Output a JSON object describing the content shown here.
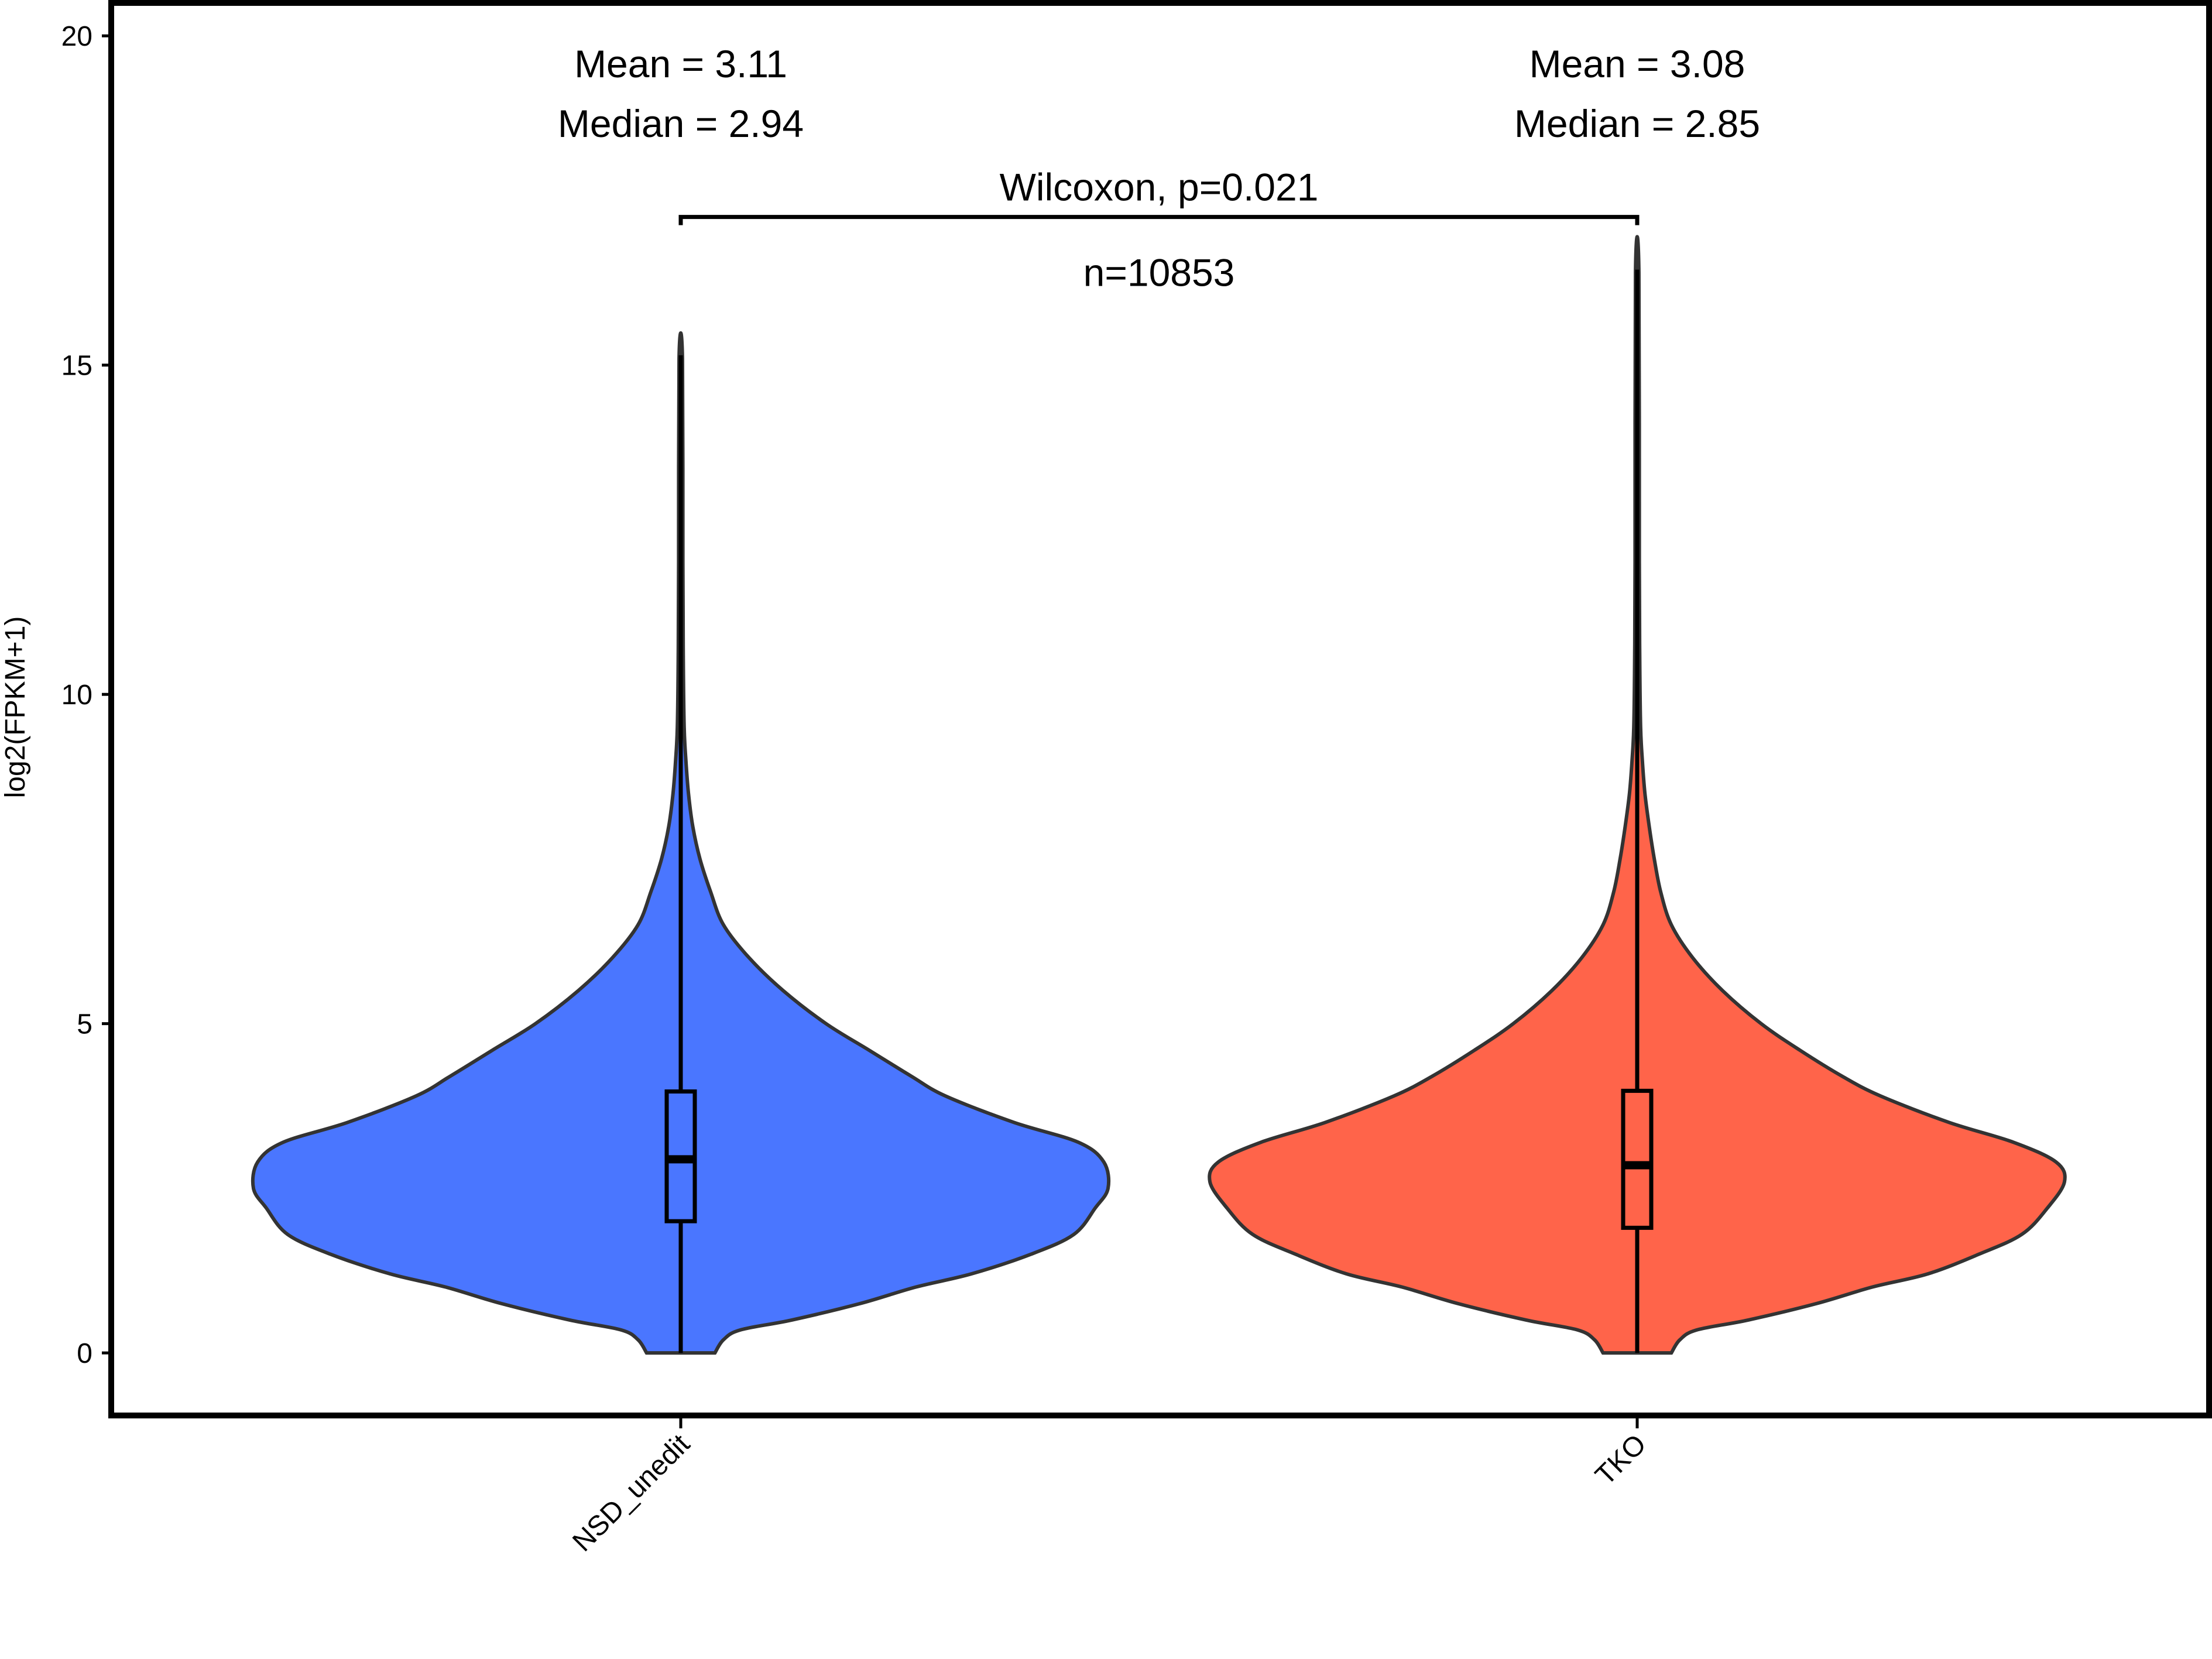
{
  "chart_data": {
    "type": "violin",
    "title": "",
    "xlabel": "",
    "ylabel": "log2(FPKM+1)",
    "ylim": [
      -0.95,
      20.5
    ],
    "yticks": [
      0,
      5,
      10,
      15,
      20
    ],
    "categories": [
      "NSD_unedit",
      "TKO"
    ],
    "colors": {
      "NSD_unedit": "#4a76ff",
      "TKO": "#ff644a",
      "outline": "#333333"
    },
    "series": [
      {
        "name": "NSD_unedit",
        "stats": {
          "mean": 3.11,
          "median": 2.94,
          "q1": 2.0,
          "q3": 3.97,
          "whisker_low": 0.0,
          "whisker_high": 15.15
        },
        "annotations": [
          "Mean = 3.11",
          "Median = 2.94"
        ],
        "density": [
          [
            0.0,
            0.08
          ],
          [
            0.2,
            0.1
          ],
          [
            0.35,
            0.14
          ],
          [
            0.5,
            0.26
          ],
          [
            0.75,
            0.42
          ],
          [
            1.0,
            0.55
          ],
          [
            1.2,
            0.68
          ],
          [
            1.5,
            0.82
          ],
          [
            1.8,
            0.92
          ],
          [
            2.2,
            0.97
          ],
          [
            2.5,
            1.0
          ],
          [
            2.9,
            0.99
          ],
          [
            3.2,
            0.93
          ],
          [
            3.5,
            0.78
          ],
          [
            3.9,
            0.62
          ],
          [
            4.2,
            0.54
          ],
          [
            4.6,
            0.44
          ],
          [
            5.0,
            0.34
          ],
          [
            5.5,
            0.24
          ],
          [
            6.0,
            0.16
          ],
          [
            6.5,
            0.1
          ],
          [
            7.0,
            0.07
          ],
          [
            7.5,
            0.045
          ],
          [
            8.0,
            0.028
          ],
          [
            8.5,
            0.018
          ],
          [
            9.0,
            0.012
          ],
          [
            9.5,
            0.008
          ],
          [
            10.5,
            0.006
          ],
          [
            12.0,
            0.005
          ],
          [
            15.1,
            0.004
          ]
        ]
      },
      {
        "name": "TKO",
        "stats": {
          "mean": 3.08,
          "median": 2.85,
          "q1": 1.9,
          "q3": 3.98,
          "whisker_low": 0.0,
          "whisker_high": 16.45
        },
        "annotations": [
          "Mean = 3.08",
          "Median = 2.85"
        ],
        "density": [
          [
            0.0,
            0.08
          ],
          [
            0.2,
            0.1
          ],
          [
            0.35,
            0.14
          ],
          [
            0.5,
            0.26
          ],
          [
            0.75,
            0.42
          ],
          [
            1.0,
            0.55
          ],
          [
            1.2,
            0.68
          ],
          [
            1.5,
            0.8
          ],
          [
            1.8,
            0.9
          ],
          [
            2.2,
            0.96
          ],
          [
            2.6,
            1.0
          ],
          [
            2.9,
            0.98
          ],
          [
            3.2,
            0.88
          ],
          [
            3.5,
            0.73
          ],
          [
            3.9,
            0.57
          ],
          [
            4.2,
            0.48
          ],
          [
            4.6,
            0.38
          ],
          [
            5.0,
            0.29
          ],
          [
            5.5,
            0.2
          ],
          [
            6.0,
            0.13
          ],
          [
            6.5,
            0.08
          ],
          [
            7.0,
            0.055
          ],
          [
            7.5,
            0.04
          ],
          [
            8.0,
            0.028
          ],
          [
            8.5,
            0.018
          ],
          [
            9.0,
            0.012
          ],
          [
            9.5,
            0.008
          ],
          [
            10.5,
            0.006
          ],
          [
            12.0,
            0.005
          ],
          [
            16.4,
            0.004
          ]
        ]
      }
    ],
    "comparison": {
      "label": "Wilcoxon, p=0.021",
      "y": 17.25
    },
    "count_label": "n=10853",
    "grid": false,
    "legend": "none"
  }
}
